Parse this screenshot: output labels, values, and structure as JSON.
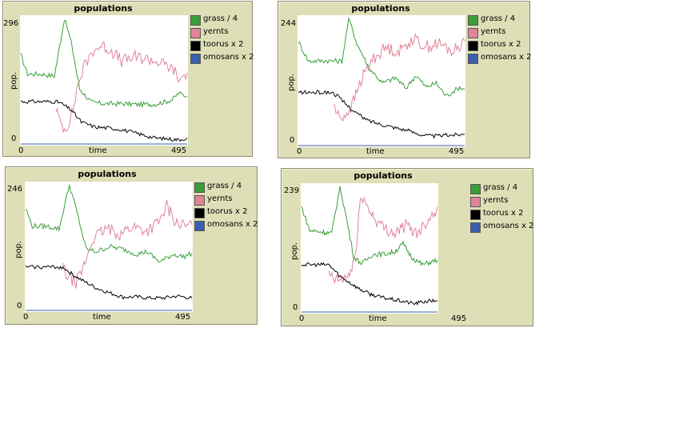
{
  "panels": [
    {
      "title": "populations",
      "ylabel": "pop.",
      "xlabel": "time",
      "ymax_label": "296",
      "ymin_label": "0",
      "xmin_label": "0",
      "xmax_label": "495"
    },
    {
      "title": "populations",
      "ylabel": "pop.",
      "xlabel": "time",
      "ymax_label": "244",
      "ymin_label": "0",
      "xmin_label": "0",
      "xmax_label": "495"
    },
    {
      "title": "populations",
      "ylabel": "pop.",
      "xlabel": "time",
      "ymax_label": "246",
      "ymin_label": "0",
      "xmin_label": "0",
      "xmax_label": "495"
    },
    {
      "title": "populations",
      "ylabel": "pop.",
      "xlabel": "time",
      "ymax_label": "239",
      "ymin_label": "0",
      "xmin_label": "0",
      "xmax_label": "495"
    }
  ],
  "legend": [
    {
      "label": "grass / 4",
      "color": "#3a9e3a"
    },
    {
      "label": "yernts",
      "color": "#e0849a"
    },
    {
      "label": "toorus x 2",
      "color": "#000000"
    },
    {
      "label": "omosans x 2",
      "color": "#3a5fb0"
    }
  ],
  "chart_data": [
    {
      "type": "line",
      "title": "populations",
      "xlabel": "time",
      "ylabel": "pop.",
      "xlim": [
        0,
        495
      ],
      "ylim": [
        0,
        296
      ],
      "grid": false,
      "legend_position": "right",
      "series": [
        {
          "name": "grass / 4",
          "color": "#3a9e3a",
          "x": [
            0,
            20,
            60,
            100,
            130,
            150,
            175,
            210,
            250,
            300,
            350,
            400,
            450,
            470,
            495
          ],
          "y": [
            210,
            165,
            165,
            160,
            296,
            240,
            130,
            98,
            95,
            95,
            93,
            94,
            104,
            120,
            112
          ],
          "noise": 0.02
        },
        {
          "name": "yernts",
          "color": "#e0849a",
          "x": [
            105,
            115,
            130,
            140,
            155,
            170,
            190,
            215,
            240,
            270,
            300,
            340,
            380,
            420,
            455,
            470,
            495
          ],
          "y": [
            85,
            55,
            35,
            45,
            80,
            140,
            185,
            220,
            232,
            220,
            195,
            205,
            200,
            190,
            175,
            150,
            168
          ],
          "noise": 0.05
        },
        {
          "name": "toorus x 2",
          "color": "#000000",
          "x": [
            0,
            100,
            115,
            135,
            150,
            180,
            220,
            260,
            300,
            350,
            400,
            440,
            470,
            495
          ],
          "y": [
            100,
            100,
            98,
            88,
            80,
            52,
            40,
            38,
            34,
            24,
            14,
            12,
            10,
            14
          ],
          "noise": 0.015
        },
        {
          "name": "omosans x 2",
          "color": "#3a5fb0",
          "x": [
            0,
            495
          ],
          "y": [
            0,
            0
          ],
          "noise": 0
        }
      ]
    },
    {
      "type": "line",
      "title": "populations",
      "xlabel": "time",
      "ylabel": "pop.",
      "xlim": [
        0,
        495
      ],
      "ylim": [
        0,
        244
      ],
      "grid": false,
      "legend_position": "right",
      "series": [
        {
          "name": "grass / 4",
          "color": "#3a9e3a",
          "x": [
            0,
            30,
            80,
            130,
            150,
            175,
            210,
            250,
            290,
            320,
            350,
            380,
            410,
            440,
            480,
            495
          ],
          "y": [
            200,
            162,
            163,
            162,
            244,
            195,
            150,
            120,
            130,
            110,
            135,
            112,
            120,
            95,
            112,
            108
          ],
          "noise": 0.02
        },
        {
          "name": "yernts",
          "color": "#e0849a",
          "x": [
            105,
            115,
            125,
            140,
            160,
            190,
            220,
            260,
            300,
            340,
            380,
            420,
            460,
            495
          ],
          "y": [
            80,
            60,
            55,
            58,
            78,
            130,
            165,
            188,
            180,
            205,
            190,
            195,
            180,
            200
          ],
          "noise": 0.05
        },
        {
          "name": "toorus x 2",
          "color": "#000000",
          "x": [
            0,
            100,
            115,
            140,
            170,
            200,
            240,
            280,
            320,
            360,
            400,
            440,
            495
          ],
          "y": [
            102,
            102,
            96,
            80,
            64,
            50,
            42,
            36,
            30,
            22,
            18,
            20,
            22
          ],
          "noise": 0.015
        },
        {
          "name": "omosans x 2",
          "color": "#3a5fb0",
          "x": [
            0,
            495
          ],
          "y": [
            0,
            0
          ],
          "noise": 0
        }
      ]
    },
    {
      "type": "line",
      "title": "populations",
      "xlabel": "time",
      "ylabel": "pop.",
      "xlim": [
        0,
        495
      ],
      "ylim": [
        0,
        246
      ],
      "grid": false,
      "legend_position": "right",
      "series": [
        {
          "name": "grass / 4",
          "color": "#3a9e3a",
          "x": [
            0,
            20,
            60,
            100,
            130,
            150,
            180,
            210,
            250,
            290,
            330,
            360,
            400,
            440,
            470,
            495
          ],
          "y": [
            200,
            165,
            165,
            160,
            246,
            200,
            120,
            115,
            125,
            120,
            110,
            115,
            95,
            110,
            105,
            112
          ],
          "noise": 0.02
        },
        {
          "name": "yernts",
          "color": "#e0849a",
          "x": [
            110,
            120,
            135,
            150,
            170,
            200,
            240,
            280,
            320,
            360,
            400,
            420,
            450,
            480,
            495
          ],
          "y": [
            90,
            70,
            60,
            55,
            80,
            140,
            160,
            150,
            165,
            155,
            175,
            205,
            170,
            165,
            168
          ],
          "noise": 0.05
        },
        {
          "name": "toorus x 2",
          "color": "#000000",
          "x": [
            0,
            100,
            115,
            140,
            170,
            210,
            250,
            290,
            330,
            370,
            410,
            450,
            495
          ],
          "y": [
            85,
            85,
            83,
            70,
            58,
            44,
            34,
            26,
            26,
            24,
            24,
            28,
            24
          ],
          "noise": 0.015
        },
        {
          "name": "omosans x 2",
          "color": "#3a5fb0",
          "x": [
            0,
            495
          ],
          "y": [
            0,
            0
          ],
          "noise": 0
        }
      ]
    },
    {
      "type": "line",
      "title": "populations",
      "xlabel": "time",
      "ylabel": "pop.",
      "xlim": [
        0,
        495
      ],
      "ylim": [
        0,
        239
      ],
      "grid": false,
      "legend_position": "right",
      "series": [
        {
          "name": "grass / 4",
          "color": "#3a9e3a",
          "x": [
            0,
            30,
            80,
            110,
            140,
            165,
            190,
            220,
            260,
            300,
            340,
            370,
            400,
            440,
            470,
            495
          ],
          "y": [
            200,
            155,
            152,
            150,
            239,
            175,
            105,
            92,
            110,
            110,
            115,
            130,
            105,
            90,
            95,
            98
          ],
          "noise": 0.02
        },
        {
          "name": "yernts",
          "color": "#e0849a",
          "x": [
            100,
            110,
            125,
            150,
            175,
            200,
            215,
            240,
            270,
            300,
            340,
            380,
            420,
            460,
            495
          ],
          "y": [
            70,
            65,
            60,
            62,
            70,
            120,
            225,
            200,
            175,
            160,
            150,
            165,
            150,
            175,
            200
          ],
          "noise": 0.05
        },
        {
          "name": "toorus x 2",
          "color": "#000000",
          "x": [
            0,
            100,
            115,
            140,
            170,
            210,
            250,
            290,
            330,
            370,
            410,
            450,
            495
          ],
          "y": [
            90,
            90,
            82,
            68,
            58,
            44,
            34,
            28,
            24,
            20,
            16,
            20,
            22
          ],
          "noise": 0.015
        },
        {
          "name": "omosans x 2",
          "color": "#3a5fb0",
          "x": [
            0,
            495
          ],
          "y": [
            0,
            0
          ],
          "noise": 0
        }
      ]
    }
  ]
}
